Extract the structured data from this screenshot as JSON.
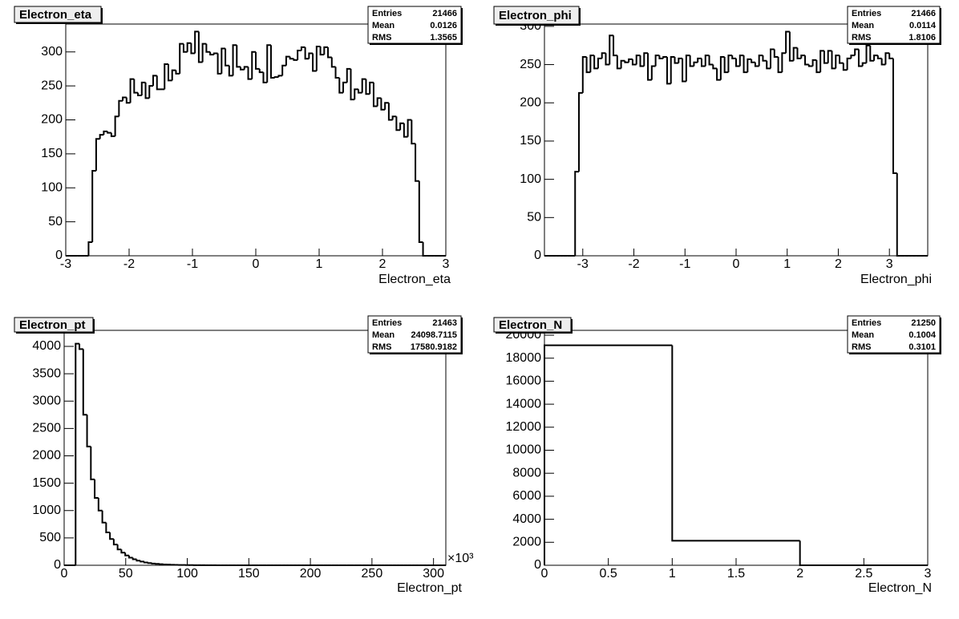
{
  "chart_data": [
    {
      "type": "histogram",
      "title": "Electron_eta",
      "x_label": "Electron_eta",
      "stats": [
        {
          "label": "Entries",
          "value": 21466
        },
        {
          "label": "Mean",
          "value": 0.0126
        },
        {
          "label": "RMS",
          "value": 1.3565
        }
      ],
      "xlim": [
        -3,
        3
      ],
      "ylim": [
        0,
        341
      ],
      "xticks": [
        -3,
        -2,
        -1,
        0,
        1,
        2,
        3
      ],
      "yticks": [
        0,
        50,
        100,
        150,
        200,
        250,
        300
      ],
      "bins": [
        -3,
        -2.94,
        -2.88,
        -2.82,
        -2.76,
        -2.7,
        -2.64,
        -2.58,
        -2.52,
        -2.46,
        -2.4,
        -2.34,
        -2.28,
        -2.22,
        -2.16,
        -2.1,
        -2.04,
        -1.98,
        -1.92,
        -1.86,
        -1.8,
        -1.74,
        -1.68,
        -1.62,
        -1.56,
        -1.5,
        -1.44,
        -1.38,
        -1.32,
        -1.26,
        -1.2,
        -1.14,
        -1.08,
        -1.02,
        -0.96,
        -0.9,
        -0.84,
        -0.78,
        -0.72,
        -0.66,
        -0.6,
        -0.54,
        -0.48,
        -0.42,
        -0.36,
        -0.3,
        -0.24,
        -0.18,
        -0.12,
        -0.06,
        0,
        0.06,
        0.12,
        0.18,
        0.24,
        0.3,
        0.36,
        0.42,
        0.48,
        0.54,
        0.6,
        0.66,
        0.72,
        0.78,
        0.84,
        0.9,
        0.96,
        1.02,
        1.08,
        1.14,
        1.2,
        1.26,
        1.32,
        1.38,
        1.44,
        1.5,
        1.56,
        1.62,
        1.68,
        1.74,
        1.8,
        1.86,
        1.92,
        1.98,
        2.04,
        2.1,
        2.16,
        2.22,
        2.28,
        2.34,
        2.4,
        2.46,
        2.52,
        2.58,
        2.64,
        2.7,
        2.76,
        2.82,
        2.88,
        2.94,
        3
      ],
      "values": [
        0,
        0,
        0,
        0,
        0,
        0,
        20,
        125,
        172,
        178,
        183,
        181,
        176,
        205,
        228,
        233,
        225,
        260,
        240,
        236,
        255,
        232,
        250,
        265,
        245,
        245,
        282,
        258,
        273,
        268,
        312,
        300,
        313,
        298,
        330,
        285,
        312,
        300,
        296,
        298,
        268,
        305,
        280,
        265,
        310,
        278,
        274,
        278,
        260,
        300,
        275,
        270,
        255,
        310,
        262,
        263,
        265,
        280,
        293,
        290,
        288,
        302,
        307,
        290,
        298,
        272,
        308,
        296,
        307,
        292,
        278,
        262,
        240,
        255,
        275,
        230,
        245,
        240,
        260,
        238,
        255,
        220,
        232,
        215,
        225,
        200,
        205,
        185,
        195,
        175,
        200,
        165,
        110,
        20,
        0,
        0,
        0,
        0,
        0,
        0
      ]
    },
    {
      "type": "histogram",
      "title": "Electron_phi",
      "x_label": "Electron_phi",
      "stats": [
        {
          "label": "Entries",
          "value": 21466
        },
        {
          "label": "Mean",
          "value": 0.0114
        },
        {
          "label": "RMS",
          "value": 1.8106
        }
      ],
      "xlim": [
        -3.75,
        3.75
      ],
      "ylim": [
        0,
        303
      ],
      "xticks": [
        -3,
        -2,
        -1,
        0,
        1,
        2,
        3
      ],
      "yticks": [
        0,
        50,
        100,
        150,
        200,
        250,
        300
      ],
      "bins": [
        -3.75,
        -3.675,
        -3.6,
        -3.525,
        -3.45,
        -3.375,
        -3.3,
        -3.225,
        -3.15,
        -3.075,
        -3,
        -2.925,
        -2.85,
        -2.775,
        -2.7,
        -2.625,
        -2.55,
        -2.475,
        -2.4,
        -2.325,
        -2.25,
        -2.175,
        -2.1,
        -2.025,
        -1.95,
        -1.875,
        -1.8,
        -1.725,
        -1.65,
        -1.575,
        -1.5,
        -1.425,
        -1.35,
        -1.275,
        -1.2,
        -1.125,
        -1.05,
        -0.975,
        -0.9,
        -0.825,
        -0.75,
        -0.675,
        -0.6,
        -0.525,
        -0.45,
        -0.375,
        -0.3,
        -0.225,
        -0.15,
        -0.075,
        0,
        0.075,
        0.15,
        0.225,
        0.3,
        0.375,
        0.45,
        0.525,
        0.6,
        0.675,
        0.75,
        0.825,
        0.9,
        0.975,
        1.05,
        1.125,
        1.2,
        1.275,
        1.35,
        1.425,
        1.5,
        1.575,
        1.65,
        1.725,
        1.8,
        1.875,
        1.95,
        2.025,
        2.1,
        2.175,
        2.25,
        2.325,
        2.4,
        2.475,
        2.55,
        2.625,
        2.7,
        2.775,
        2.85,
        2.925,
        3,
        3.075,
        3.15,
        3.225,
        3.3,
        3.375,
        3.45,
        3.525,
        3.6,
        3.675,
        3.75
      ],
      "values": [
        0,
        0,
        0,
        0,
        0,
        0,
        0,
        0,
        110,
        213,
        260,
        240,
        262,
        245,
        258,
        265,
        250,
        288,
        262,
        245,
        255,
        253,
        257,
        250,
        262,
        248,
        265,
        230,
        248,
        262,
        258,
        260,
        225,
        260,
        252,
        258,
        228,
        262,
        248,
        253,
        258,
        248,
        262,
        250,
        245,
        230,
        260,
        240,
        262,
        258,
        248,
        262,
        240,
        257,
        253,
        248,
        262,
        255,
        245,
        270,
        260,
        240,
        265,
        293,
        255,
        272,
        258,
        262,
        250,
        248,
        256,
        240,
        268,
        252,
        268,
        245,
        262,
        252,
        243,
        258,
        262,
        270,
        248,
        252,
        275,
        255,
        262,
        258,
        250,
        265,
        258,
        108,
        0,
        0,
        0,
        0,
        0,
        0,
        0,
        0
      ]
    },
    {
      "type": "histogram",
      "title": "Electron_pt",
      "x_label": "Electron_pt",
      "x_multiplier": "×10³",
      "stats": [
        {
          "label": "Entries",
          "value": 21463
        },
        {
          "label": "Mean",
          "value": 24098.7115
        },
        {
          "label": "RMS",
          "value": 17580.9182
        }
      ],
      "xlim": [
        0,
        310
      ],
      "ylim": [
        0,
        4293
      ],
      "xticks": [
        0,
        50,
        100,
        150,
        200,
        250,
        300
      ],
      "yticks": [
        0,
        500,
        1000,
        1500,
        2000,
        2500,
        3000,
        3500,
        4000
      ],
      "bins": [
        0,
        3.1,
        6.2,
        9.3,
        12.4,
        15.5,
        18.6,
        21.7,
        24.8,
        27.9,
        31,
        34.1,
        37.2,
        40.3,
        43.4,
        46.5,
        49.6,
        52.7,
        55.8,
        58.9,
        62,
        65.1,
        68.2,
        71.3,
        74.4,
        77.5,
        80.6,
        83.7,
        86.8,
        89.9,
        93,
        96.1,
        99.2,
        102.3,
        105.4,
        108.5,
        111.6,
        114.7,
        117.8,
        120.9,
        124,
        127.1,
        130.2,
        133.3,
        136.4,
        139.5,
        142.6,
        145.7,
        148.8,
        151.9,
        155,
        158.1,
        161.2,
        164.3,
        167.4,
        170.5,
        173.6,
        176.7,
        179.8,
        182.9,
        186,
        189.1,
        192.2,
        195.3,
        198.4,
        201.5,
        204.6,
        207.7,
        210.8,
        213.9,
        217,
        220.1,
        223.2,
        226.3,
        229.4,
        232.5,
        235.6,
        238.7,
        241.8,
        244.9,
        248,
        251.1,
        254.2,
        257.3,
        260.4,
        263.5,
        266.6,
        269.7,
        272.8,
        275.9,
        279,
        282.1,
        285.2,
        288.3,
        291.4,
        294.5,
        297.6,
        300.7,
        303.8,
        306.9,
        310
      ],
      "values": [
        0,
        0,
        0,
        4050,
        3950,
        2750,
        2170,
        1570,
        1230,
        1000,
        780,
        600,
        480,
        380,
        290,
        230,
        180,
        140,
        110,
        85,
        68,
        52,
        40,
        32,
        25,
        20,
        15,
        12,
        10,
        8,
        6,
        5,
        4,
        3,
        2,
        2,
        1,
        1,
        1,
        1,
        0,
        0,
        0,
        0,
        0,
        0,
        0,
        0,
        0,
        0,
        0,
        0,
        0,
        0,
        0,
        0,
        0,
        0,
        0,
        0,
        0,
        0,
        0,
        0,
        0,
        0,
        0,
        0,
        0,
        0,
        0,
        0,
        0,
        0,
        0,
        0,
        0,
        0,
        0,
        0,
        0,
        0,
        0,
        0,
        0,
        0,
        0,
        0,
        0,
        0,
        0,
        0,
        0,
        0,
        0,
        0,
        0,
        0,
        0,
        0
      ]
    },
    {
      "type": "histogram",
      "title": "Electron_N",
      "x_label": "Electron_N",
      "stats": [
        {
          "label": "Entries",
          "value": 21250
        },
        {
          "label": "Mean",
          "value": 0.1004
        },
        {
          "label": "RMS",
          "value": 0.3101
        }
      ],
      "xlim": [
        0,
        3
      ],
      "ylim": [
        0,
        20418
      ],
      "xticks": [
        0,
        0.5,
        1,
        1.5,
        2,
        2.5,
        3
      ],
      "yticks": [
        0,
        2000,
        4000,
        6000,
        8000,
        10000,
        12000,
        14000,
        16000,
        18000,
        20000
      ],
      "bins": [
        0,
        1,
        2,
        3
      ],
      "values": [
        19116,
        2134,
        0
      ]
    }
  ]
}
